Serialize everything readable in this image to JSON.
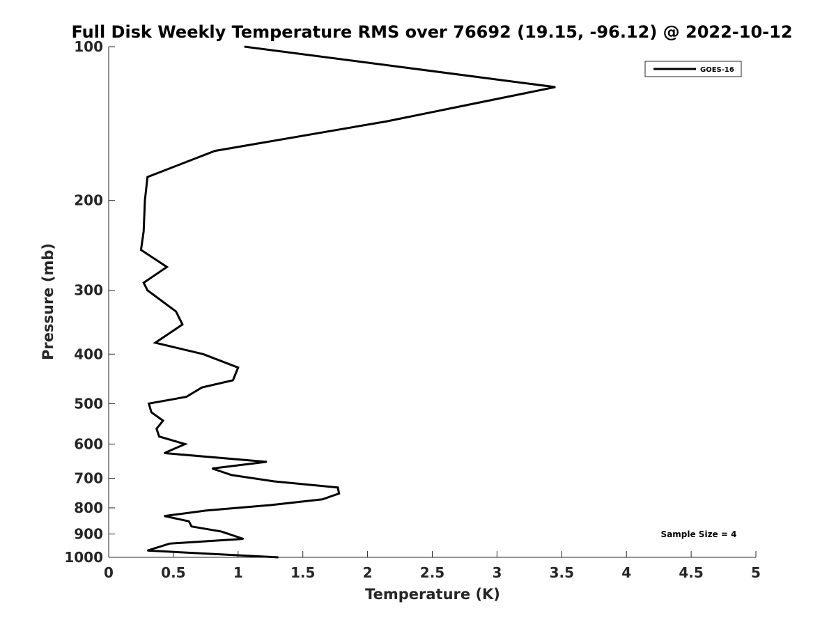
{
  "chart_data": {
    "type": "line",
    "title": "Full Disk Weekly Temperature RMS over 76692 (19.15, -96.12) @ 2022-10-12",
    "xlabel": "Temperature (K)",
    "ylabel": "Pressure (mb)",
    "xlim": [
      0,
      5
    ],
    "ylim": [
      100,
      1000
    ],
    "y_scale": "log",
    "y_reversed": true,
    "x_ticks": [
      0,
      0.5,
      1,
      1.5,
      2,
      2.5,
      3,
      3.5,
      4,
      4.5,
      5
    ],
    "x_tick_labels": [
      "0",
      "0.5",
      "1",
      "1.5",
      "2",
      "2.5",
      "3",
      "3.5",
      "4",
      "4.5",
      "5"
    ],
    "y_ticks": [
      100,
      200,
      300,
      400,
      500,
      600,
      700,
      800,
      900,
      1000
    ],
    "y_tick_labels": [
      "100",
      "200",
      "300",
      "400",
      "500",
      "600",
      "700",
      "800",
      "900",
      "1000"
    ],
    "grid": false,
    "legend_position": "top-right",
    "series": [
      {
        "name": "GOES-16",
        "color": "#000000",
        "x": [
          1.05,
          3.45,
          2.15,
          0.82,
          0.3,
          0.28,
          0.27,
          0.25,
          0.45,
          0.27,
          0.3,
          0.52,
          0.57,
          0.36,
          0.73,
          1.0,
          0.96,
          0.72,
          0.6,
          0.31,
          0.33,
          0.42,
          0.37,
          0.39,
          0.59,
          0.43,
          1.22,
          0.8,
          0.95,
          1.28,
          1.77,
          1.78,
          1.65,
          1.25,
          0.75,
          0.43,
          0.62,
          0.64,
          0.87,
          1.04,
          0.47,
          0.3,
          1.31
        ],
        "y": [
          100,
          120,
          140,
          160,
          180,
          200,
          230,
          250,
          270,
          290,
          300,
          330,
          350,
          380,
          400,
          425,
          450,
          465,
          485,
          500,
          520,
          540,
          560,
          580,
          600,
          625,
          650,
          670,
          690,
          710,
          730,
          750,
          770,
          790,
          810,
          830,
          850,
          870,
          890,
          920,
          940,
          970,
          1000
        ]
      }
    ],
    "annotations": [
      "Sample Size = 4"
    ]
  }
}
